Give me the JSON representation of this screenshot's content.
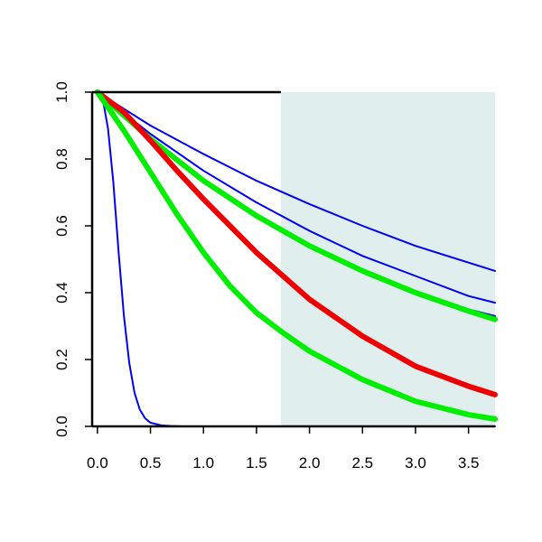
{
  "chart_data": {
    "type": "line",
    "title": "",
    "xlabel": "",
    "ylabel": "",
    "xlim": [
      -0.05,
      3.75
    ],
    "ylim": [
      0.0,
      1.0
    ],
    "x_ticks": [
      0.0,
      0.5,
      1.0,
      1.5,
      2.0,
      2.5,
      3.0,
      3.5
    ],
    "x_tick_labels": [
      "0.0",
      "0.5",
      "1.0",
      "1.5",
      "2.0",
      "2.5",
      "3.0",
      "3.5"
    ],
    "y_ticks": [
      0.0,
      0.2,
      0.4,
      0.6,
      0.8,
      1.0
    ],
    "y_tick_labels": [
      "0.0",
      "0.2",
      "0.4",
      "0.6",
      "0.8",
      "1.0"
    ],
    "grid": false,
    "shaded_region": {
      "x_start": 1.73,
      "x_end": 3.75,
      "color": "#e0eeee"
    },
    "series": [
      {
        "color": "#0000ee",
        "line": "thin",
        "x": [
          0.0,
          0.05,
          0.1,
          0.15,
          0.2,
          0.25,
          0.3,
          0.35,
          0.4,
          0.45,
          0.5,
          0.6,
          0.7,
          0.8,
          1.0,
          1.5,
          2.0,
          3.0,
          3.75
        ],
        "y": [
          1.0,
          0.98,
          0.89,
          0.73,
          0.52,
          0.33,
          0.19,
          0.1,
          0.05,
          0.024,
          0.011,
          0.003,
          0.001,
          0.0,
          0.0,
          0.0,
          0.0,
          0.0,
          0.0
        ]
      },
      {
        "color": "#0000ee",
        "line": "thin",
        "x": [
          0.0,
          0.5,
          1.0,
          1.5,
          2.0,
          2.5,
          3.0,
          3.5,
          3.75
        ],
        "y": [
          1.0,
          0.9,
          0.815,
          0.735,
          0.665,
          0.6,
          0.54,
          0.49,
          0.465
        ]
      },
      {
        "color": "#0000ee",
        "line": "thin",
        "x": [
          0.0,
          0.5,
          1.0,
          1.5,
          2.0,
          2.5,
          3.0,
          3.5,
          3.75
        ],
        "y": [
          1.0,
          0.875,
          0.765,
          0.67,
          0.585,
          0.51,
          0.45,
          0.39,
          0.37
        ]
      },
      {
        "color": "#0000ee",
        "line": "thin",
        "x": [
          0.0,
          0.5,
          1.0,
          1.5,
          2.0,
          2.5,
          3.0,
          3.5,
          3.75
        ],
        "y": [
          1.0,
          0.86,
          0.74,
          0.635,
          0.545,
          0.47,
          0.405,
          0.35,
          0.33
        ]
      },
      {
        "color": "#00ee00",
        "line": "thick",
        "x": [
          0.0,
          0.5,
          1.0,
          1.5,
          2.0,
          2.5,
          3.0,
          3.5,
          3.75
        ],
        "y": [
          1.0,
          0.86,
          0.735,
          0.63,
          0.54,
          0.465,
          0.4,
          0.345,
          0.32
        ]
      },
      {
        "color": "#ee0000",
        "line": "thick",
        "x": [
          0.0,
          0.25,
          0.5,
          0.75,
          1.0,
          1.25,
          1.5,
          1.75,
          2.0,
          2.5,
          3.0,
          3.5,
          3.75
        ],
        "y": [
          1.0,
          0.94,
          0.855,
          0.765,
          0.68,
          0.6,
          0.52,
          0.45,
          0.38,
          0.27,
          0.18,
          0.12,
          0.095
        ]
      },
      {
        "color": "#00ee00",
        "line": "thick",
        "x": [
          0.0,
          0.25,
          0.5,
          0.75,
          1.0,
          1.25,
          1.5,
          1.75,
          2.0,
          2.5,
          3.0,
          3.5,
          3.75
        ],
        "y": [
          1.0,
          0.885,
          0.76,
          0.635,
          0.52,
          0.42,
          0.34,
          0.28,
          0.225,
          0.14,
          0.075,
          0.035,
          0.022
        ]
      }
    ]
  }
}
